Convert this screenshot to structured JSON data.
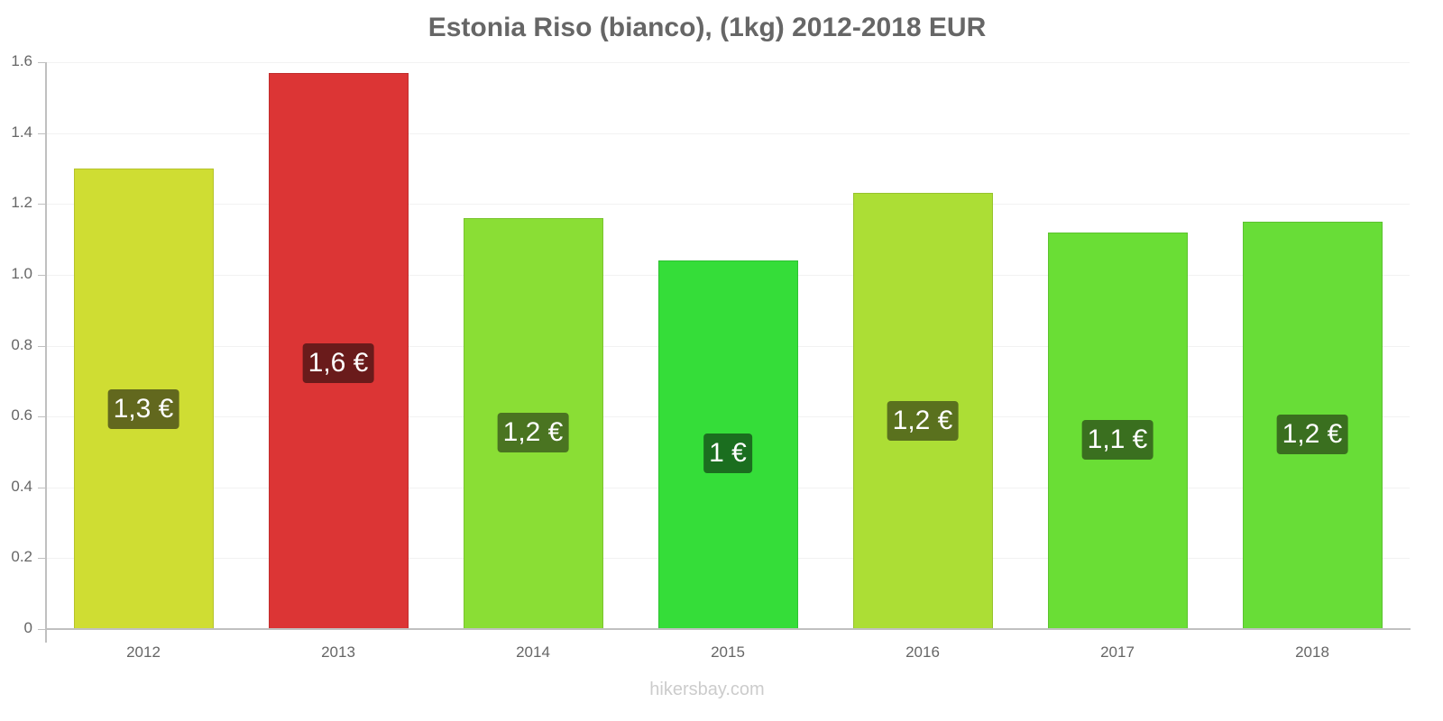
{
  "chart_data": {
    "type": "bar",
    "title": "Estonia Riso (bianco), (1kg) 2012-2018 EUR",
    "xlabel": "",
    "ylabel": "",
    "ylim": [
      0,
      1.6
    ],
    "yticks": [
      "0",
      "0.2",
      "0.4",
      "0.6",
      "0.8",
      "1.0",
      "1.2",
      "1.4",
      "1.6"
    ],
    "grid": true,
    "legend": null,
    "categories": [
      "2012",
      "2013",
      "2014",
      "2015",
      "2016",
      "2017",
      "2018"
    ],
    "values": [
      1.3,
      1.57,
      1.16,
      1.04,
      1.23,
      1.12,
      1.15
    ],
    "data_labels": [
      "1,3 €",
      "1,6 €",
      "1,2 €",
      "1 €",
      "1,2 €",
      "1,1 €",
      "1,2 €"
    ],
    "bar_colors": [
      "#cfdd33",
      "#dc3535",
      "#8ade35",
      "#35dd39",
      "#acde35",
      "#6ade35",
      "#68dd37"
    ],
    "label_colors": [
      "#62681e",
      "#6a1b1b",
      "#4a7421",
      "#1b6e1f",
      "#5a711e",
      "#3a6f1f",
      "#3a6f1f"
    ]
  },
  "footer": {
    "source": "hikersbay.com"
  }
}
